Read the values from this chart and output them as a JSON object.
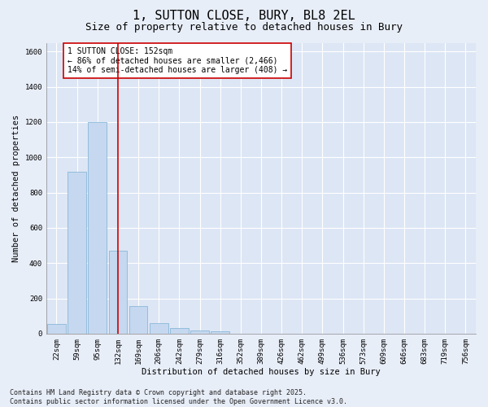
{
  "title": "1, SUTTON CLOSE, BURY, BL8 2EL",
  "subtitle": "Size of property relative to detached houses in Bury",
  "xlabel": "Distribution of detached houses by size in Bury",
  "ylabel": "Number of detached properties",
  "categories": [
    "22sqm",
    "59sqm",
    "95sqm",
    "132sqm",
    "169sqm",
    "206sqm",
    "242sqm",
    "279sqm",
    "316sqm",
    "352sqm",
    "389sqm",
    "426sqm",
    "462sqm",
    "499sqm",
    "536sqm",
    "573sqm",
    "609sqm",
    "646sqm",
    "683sqm",
    "719sqm",
    "756sqm"
  ],
  "values": [
    55,
    920,
    1200,
    470,
    155,
    60,
    32,
    18,
    12,
    0,
    0,
    0,
    0,
    0,
    0,
    0,
    0,
    0,
    0,
    0,
    0
  ],
  "bar_color": "#c5d8ef",
  "bar_edge_color": "#7bafd4",
  "vline_color": "#cc0000",
  "annotation_text": "1 SUTTON CLOSE: 152sqm\n← 86% of detached houses are smaller (2,466)\n14% of semi-detached houses are larger (408) →",
  "annotation_box_color": "#cc0000",
  "ylim": [
    0,
    1650
  ],
  "yticks": [
    0,
    200,
    400,
    600,
    800,
    1000,
    1200,
    1400,
    1600
  ],
  "footnote": "Contains HM Land Registry data © Crown copyright and database right 2025.\nContains public sector information licensed under the Open Government Licence v3.0.",
  "bg_color": "#e8eef8",
  "plot_bg_color": "#dde6f5",
  "grid_color": "#ffffff",
  "title_fontsize": 11,
  "subtitle_fontsize": 9,
  "axis_label_fontsize": 7.5,
  "tick_fontsize": 6.5,
  "annotation_fontsize": 7,
  "footnote_fontsize": 6
}
